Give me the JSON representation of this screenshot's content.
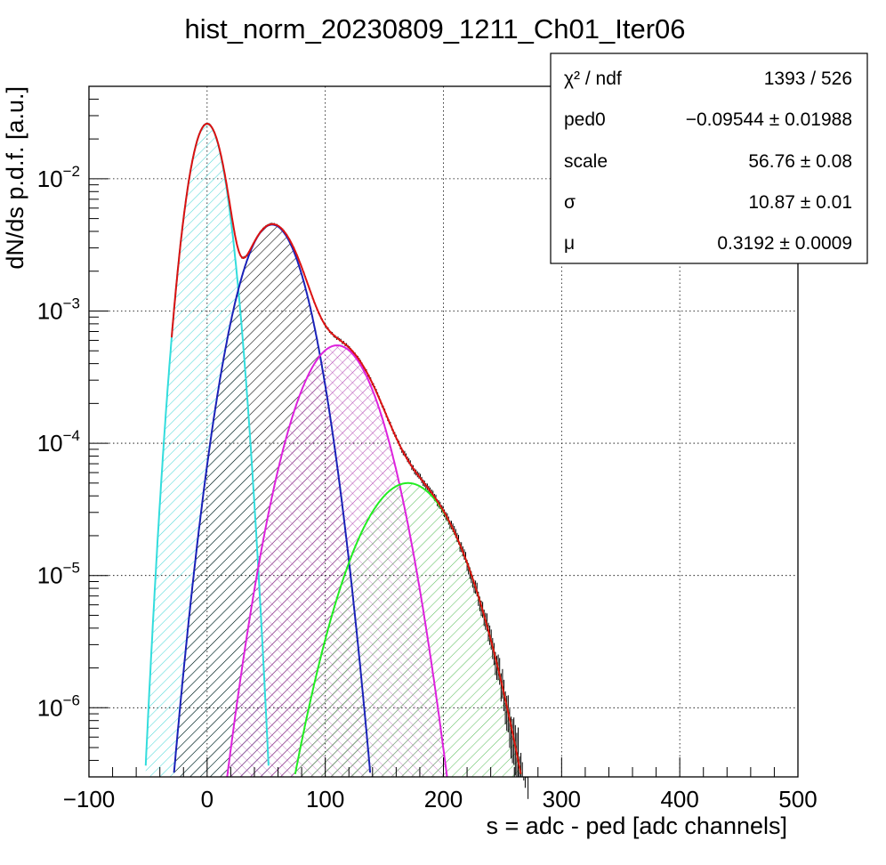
{
  "chart_data": {
    "type": "histogram-with-fit",
    "title": "hist_norm_20230809_1211_Ch01_Iter06",
    "xlabel": "s = adc - ped [adc channels]",
    "ylabel": "dN/ds p.d.f. [a.u.]",
    "xlim": [
      -100,
      500
    ],
    "ylim": [
      3e-07,
      0.05
    ],
    "yscale": "log",
    "grid": true,
    "x_ticks": [
      {
        "value": -100,
        "label": "−100"
      },
      {
        "value": 0,
        "label": "0"
      },
      {
        "value": 100,
        "label": "100"
      },
      {
        "value": 200,
        "label": "200"
      },
      {
        "value": 300,
        "label": "300"
      },
      {
        "value": 400,
        "label": "400"
      },
      {
        "value": 500,
        "label": "500"
      }
    ],
    "y_ticks": [
      {
        "value": 1e-06,
        "base": "10",
        "exp": "−6"
      },
      {
        "value": 1e-05,
        "base": "10",
        "exp": "−5"
      },
      {
        "value": 0.0001,
        "base": "10",
        "exp": "−4"
      },
      {
        "value": 0.001,
        "base": "10",
        "exp": "−3"
      },
      {
        "value": 0.01,
        "base": "10",
        "exp": "−2"
      }
    ],
    "stats_box": {
      "position": "top-right",
      "rows": [
        {
          "label": "χ² / ndf",
          "value": "1393 / 526"
        },
        {
          "label": "ped0",
          "value": "−0.09544 ± 0.01988"
        },
        {
          "label": "scale",
          "value": "56.76 ± 0.08"
        },
        {
          "label": "σ",
          "value": "10.87 ± 0.01"
        },
        {
          "label": "μ",
          "value": "0.3192 ± 0.0009"
        }
      ]
    },
    "components": [
      {
        "color": "#33dddd",
        "hatch": "#4fd8d8",
        "peak_x": 0,
        "sigma": 11,
        "peak_y": 0.026
      },
      {
        "color": "#1a22b8",
        "hatch": "#000000",
        "peak_x": 55,
        "sigma": 19,
        "peak_y": 0.0045
      },
      {
        "color": "#dd22dd",
        "hatch": "#b040b0",
        "peak_x": 110,
        "sigma": 24,
        "peak_y": 0.00055
      },
      {
        "color": "#22ee22",
        "hatch": "#60c060",
        "peak_x": 170,
        "sigma": 30,
        "peak_y": 5e-05
      }
    ],
    "total_fit": {
      "color": "#dd1111",
      "x_start": -30,
      "x_end": 320
    }
  }
}
